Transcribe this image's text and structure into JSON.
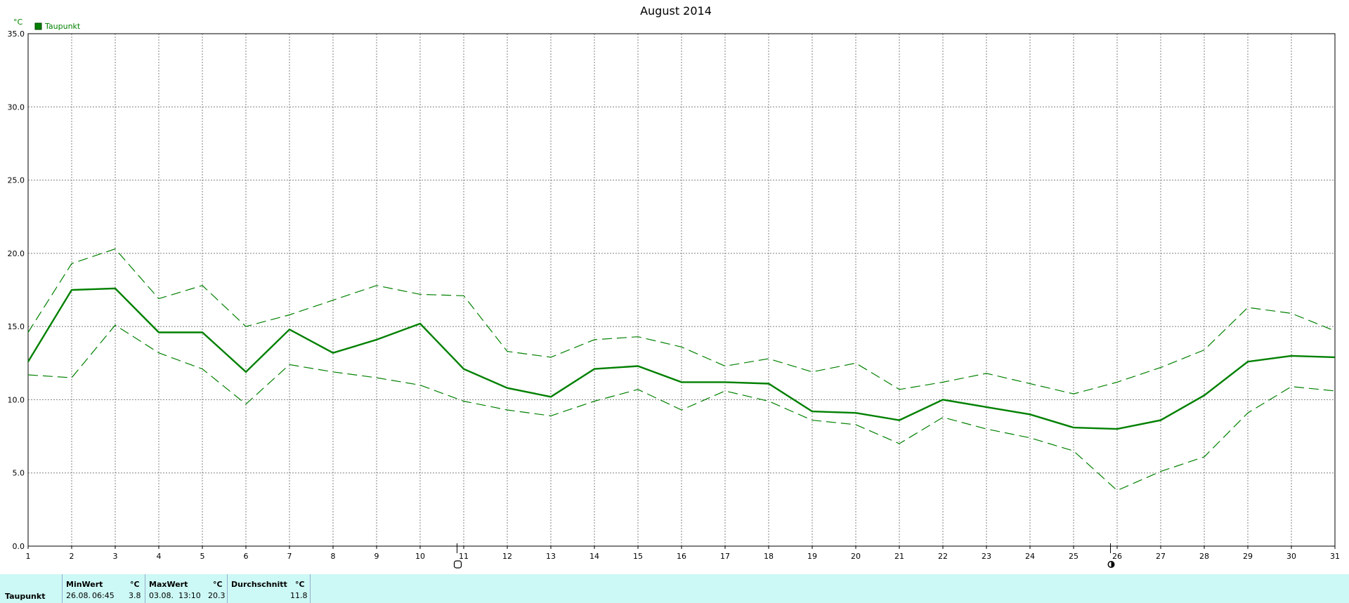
{
  "chart_data": {
    "type": "line",
    "title": "August 2014",
    "ylabel": "°C",
    "ylim": [
      0,
      35
    ],
    "xlim": [
      1,
      31
    ],
    "y_ticks": [
      "0.0",
      "5.0",
      "10.0",
      "15.0",
      "20.0",
      "25.0",
      "30.0",
      "35.0"
    ],
    "x": [
      1,
      2,
      3,
      4,
      5,
      6,
      7,
      8,
      9,
      10,
      11,
      12,
      13,
      14,
      15,
      16,
      17,
      18,
      19,
      20,
      21,
      22,
      23,
      24,
      25,
      26,
      27,
      28,
      29,
      30,
      31
    ],
    "grid": true,
    "legend": {
      "position": "top-left",
      "entries": [
        "Taupunkt"
      ]
    },
    "series": [
      {
        "name": "Taupunkt",
        "style": "solid",
        "values": [
          12.6,
          17.5,
          17.6,
          14.6,
          14.6,
          11.9,
          14.8,
          13.2,
          14.1,
          15.2,
          12.1,
          10.8,
          10.2,
          12.1,
          12.3,
          11.2,
          11.2,
          11.1,
          9.2,
          9.1,
          8.6,
          10.0,
          9.5,
          9.0,
          8.1,
          8.0,
          8.6,
          10.3,
          12.6,
          13.0,
          12.9
        ]
      },
      {
        "style": "dashed",
        "values": [
          14.6,
          19.3,
          20.3,
          16.9,
          17.8,
          15.0,
          15.8,
          16.8,
          17.8,
          17.2,
          17.1,
          13.3,
          12.9,
          14.1,
          14.3,
          13.6,
          12.3,
          12.8,
          11.9,
          12.5,
          10.7,
          11.2,
          11.8,
          11.1,
          10.4,
          11.2,
          12.2,
          13.4,
          16.3,
          15.9,
          14.7
        ]
      },
      {
        "style": "dashed",
        "values": [
          11.7,
          11.5,
          15.1,
          13.2,
          12.1,
          9.7,
          12.4,
          11.9,
          11.5,
          11.0,
          9.9,
          9.3,
          8.9,
          9.9,
          10.7,
          9.3,
          10.6,
          9.9,
          8.6,
          8.3,
          7.0,
          8.8,
          8.0,
          7.4,
          6.5,
          3.8,
          5.1,
          6.1,
          9.1,
          10.9,
          10.6
        ]
      }
    ],
    "moon_markers": [
      {
        "day": 11,
        "phase": "full-moon-icon"
      },
      {
        "day": 26,
        "phase": "new-moon-icon"
      }
    ]
  },
  "colors": {
    "series": "#008000",
    "grid": "#808080",
    "stats_bg": "#ccf9f5"
  },
  "stats": {
    "row_label": "Taupunkt",
    "min": {
      "header": "MinWert",
      "unit": "°C",
      "date": "26.08.",
      "time": "06:45",
      "value": "3.8"
    },
    "max": {
      "header": "MaxWert",
      "unit": "°C",
      "date": "03.08.",
      "time": "13:10",
      "value": "20.3"
    },
    "avg": {
      "header": "Durchschnitt",
      "unit": "°C",
      "value": "11.8"
    }
  }
}
